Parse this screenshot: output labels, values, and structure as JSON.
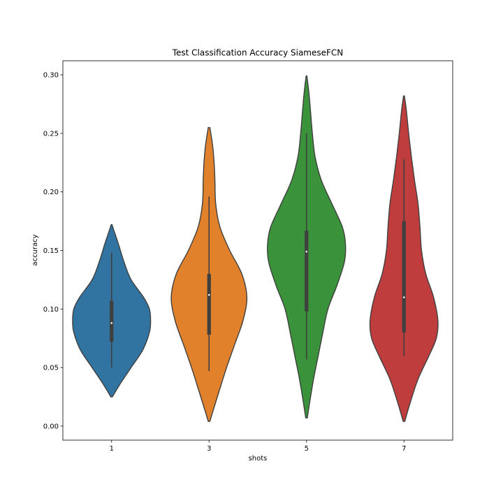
{
  "chart_data": {
    "type": "violin",
    "title": "Test Classification Accuracy SiameseFCN",
    "xlabel": "shots",
    "ylabel": "accuracy",
    "ylim": [
      -0.012,
      0.312
    ],
    "yticks": [
      0.0,
      0.05,
      0.1,
      0.15,
      0.2,
      0.25,
      0.3
    ],
    "ytick_labels": [
      "0.00",
      "0.05",
      "0.10",
      "0.15",
      "0.20",
      "0.25",
      "0.30"
    ],
    "categories": [
      "1",
      "3",
      "5",
      "7"
    ],
    "grid": false,
    "series": [
      {
        "category": "1",
        "color": "#3274a1",
        "median": 0.088,
        "q1": 0.072,
        "q3": 0.107,
        "whisker_low": 0.05,
        "whisker_high": 0.148,
        "density_y": [
          0.025,
          0.035,
          0.05,
          0.065,
          0.08,
          0.09,
          0.1,
          0.11,
          0.125,
          0.14,
          0.155,
          0.165,
          0.172
        ],
        "density_w": [
          0.02,
          0.2,
          0.5,
          0.8,
          0.97,
          1.0,
          0.97,
          0.82,
          0.5,
          0.32,
          0.18,
          0.08,
          0.01
        ]
      },
      {
        "category": "3",
        "color": "#e1812c",
        "median": 0.112,
        "q1": 0.078,
        "q3": 0.13,
        "whisker_low": 0.047,
        "whisker_high": 0.196,
        "density_y": [
          0.004,
          0.015,
          0.03,
          0.05,
          0.07,
          0.09,
          0.11,
          0.13,
          0.15,
          0.17,
          0.19,
          0.21,
          0.225,
          0.24,
          0.255
        ],
        "density_w": [
          0.02,
          0.12,
          0.26,
          0.45,
          0.66,
          0.87,
          0.97,
          0.84,
          0.53,
          0.28,
          0.17,
          0.15,
          0.13,
          0.09,
          0.02
        ]
      },
      {
        "category": "5",
        "color": "#3a923a",
        "median": 0.149,
        "q1": 0.098,
        "q3": 0.167,
        "whisker_low": 0.057,
        "whisker_high": 0.25,
        "density_y": [
          0.007,
          0.02,
          0.04,
          0.06,
          0.08,
          0.1,
          0.12,
          0.14,
          0.155,
          0.17,
          0.19,
          0.21,
          0.23,
          0.25,
          0.27,
          0.285,
          0.299
        ],
        "density_w": [
          0.02,
          0.08,
          0.18,
          0.3,
          0.42,
          0.55,
          0.78,
          0.97,
          1.0,
          0.92,
          0.65,
          0.38,
          0.22,
          0.15,
          0.1,
          0.06,
          0.01
        ]
      },
      {
        "category": "7",
        "color": "#c03d3e",
        "median": 0.11,
        "q1": 0.08,
        "q3": 0.175,
        "whisker_low": 0.06,
        "whisker_high": 0.228,
        "density_y": [
          0.004,
          0.02,
          0.04,
          0.06,
          0.075,
          0.09,
          0.11,
          0.13,
          0.15,
          0.17,
          0.19,
          0.21,
          0.23,
          0.25,
          0.27,
          0.282
        ],
        "density_w": [
          0.02,
          0.16,
          0.36,
          0.64,
          0.83,
          0.87,
          0.76,
          0.56,
          0.45,
          0.41,
          0.36,
          0.27,
          0.19,
          0.12,
          0.06,
          0.01
        ]
      }
    ]
  }
}
